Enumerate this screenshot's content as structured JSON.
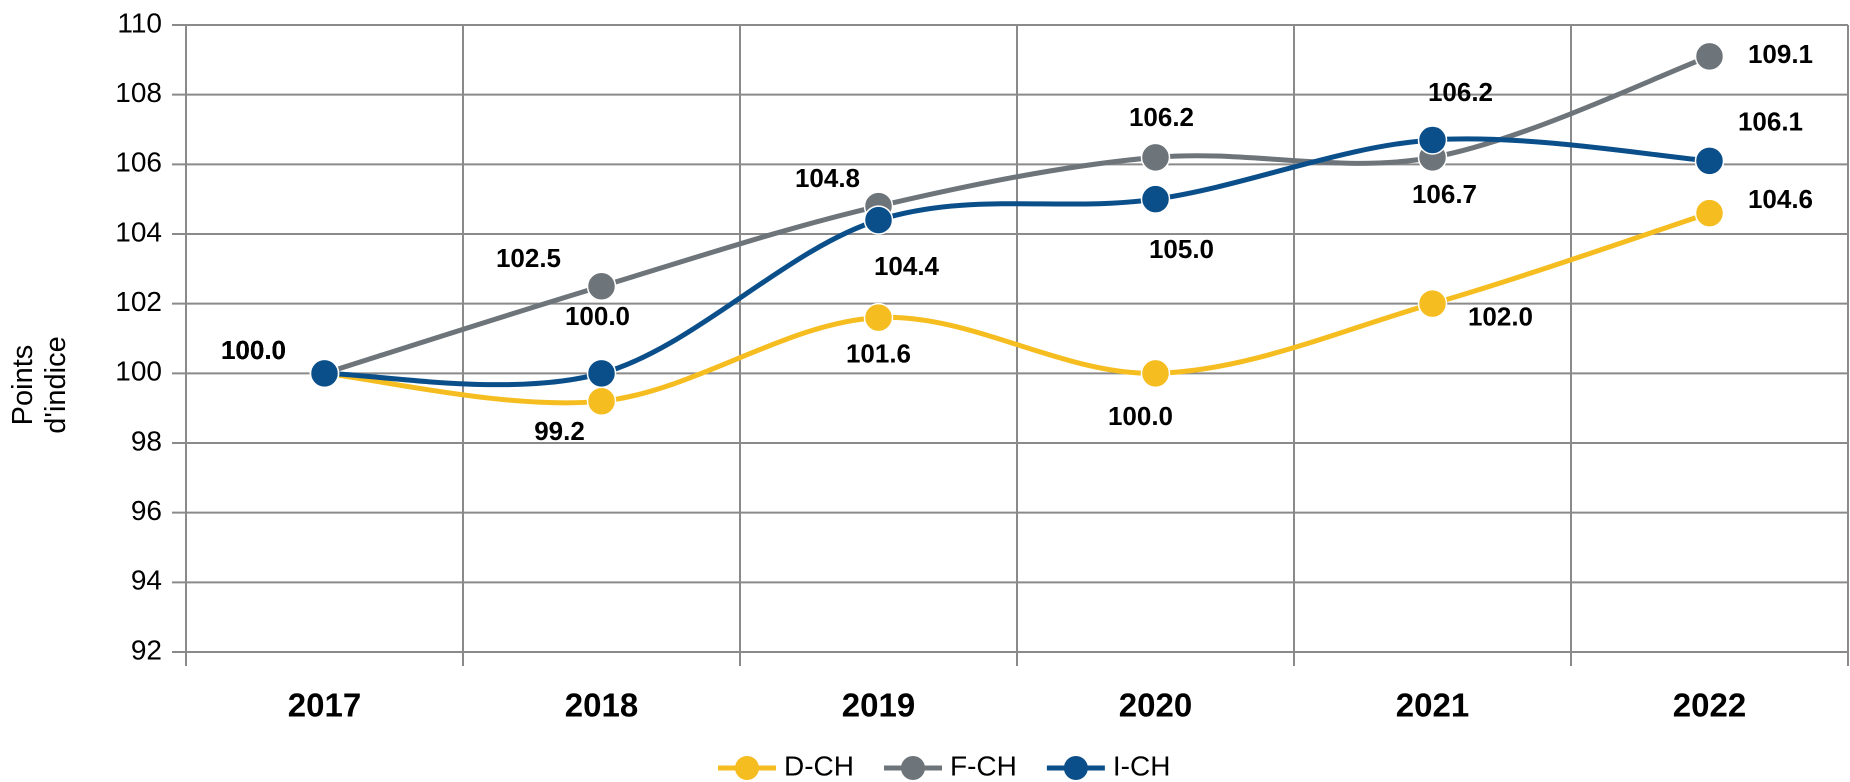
{
  "chart_data": {
    "type": "line",
    "y_label": "Points d'indice",
    "categories": [
      "2017",
      "2018",
      "2019",
      "2020",
      "2021",
      "2022"
    ],
    "series": [
      {
        "name": "D-CH",
        "color": "#f5bd1f",
        "values": [
          100.0,
          99.2,
          101.6,
          100.0,
          102.0,
          104.6
        ],
        "value_labels": [
          "100.0",
          "99.2",
          "101.6",
          "100.0",
          "102.0",
          "104.6"
        ]
      },
      {
        "name": "F-CH",
        "color": "#6d757b",
        "values": [
          100.0,
          102.5,
          104.8,
          106.2,
          106.2,
          109.1
        ],
        "value_labels": [
          "100.0",
          "102.5",
          "104.8",
          "106.2",
          "106.2",
          "109.1"
        ]
      },
      {
        "name": "I-CH",
        "color": "#0b4f8a",
        "values": [
          100.0,
          100.0,
          104.4,
          105.0,
          106.7,
          106.1
        ],
        "value_labels": [
          "100.0",
          "100.0",
          "104.4",
          "105.0",
          "106.7",
          "106.1"
        ]
      }
    ],
    "ylim": [
      92,
      110
    ],
    "yticks": [
      92,
      94,
      96,
      98,
      100,
      102,
      104,
      106,
      108,
      110
    ],
    "grid": true,
    "legend": "bottom"
  }
}
